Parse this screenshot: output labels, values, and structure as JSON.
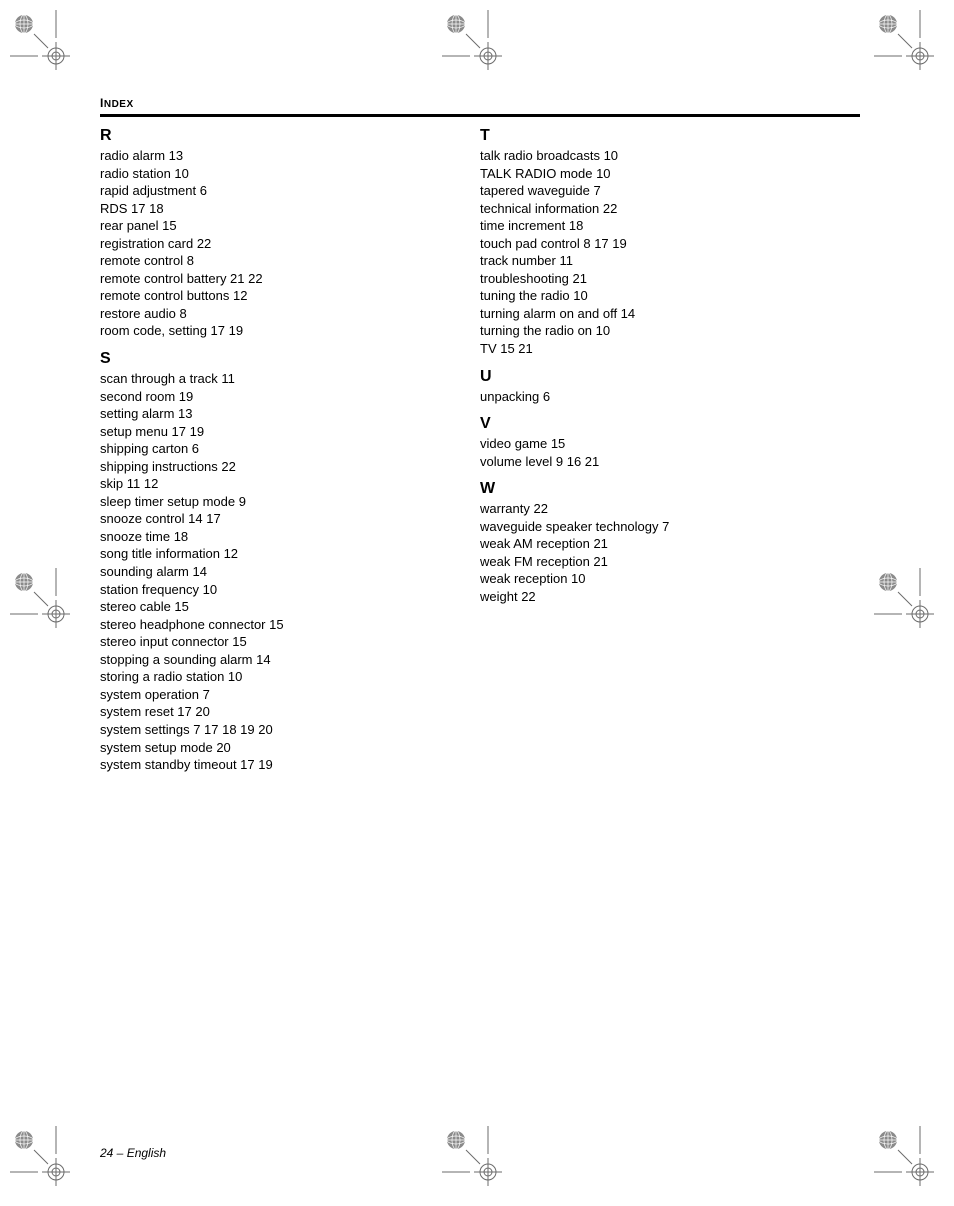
{
  "header": {
    "label_big": "I",
    "label_rest": "NDEX"
  },
  "footer": {
    "text": "24 – English"
  },
  "columns": [
    {
      "sections": [
        {
          "letter": "R",
          "entries": [
            "radio alarm 13",
            "radio station 10",
            "rapid adjustment 6",
            "RDS 17  18",
            "rear panel 15",
            "registration card 22",
            "remote control 8",
            "remote control battery 21  22",
            "remote control buttons 12",
            "restore audio 8",
            "room code, setting 17  19"
          ]
        },
        {
          "letter": "S",
          "entries": [
            "scan through a track 11",
            "second room 19",
            "setting alarm 13",
            "setup menu 17  19",
            "shipping carton 6",
            "shipping instructions 22",
            "skip 11  12",
            "sleep timer setup mode 9",
            "snooze control 14  17",
            "snooze time 18",
            "song title information 12",
            "sounding alarm 14",
            "station frequency 10",
            "stereo cable 15",
            "stereo headphone connector 15",
            "stereo input connector 15",
            "stopping a sounding alarm 14",
            "storing a radio station 10",
            "system operation 7",
            "system reset 17  20",
            "system settings 7  17  18  19  20",
            "system setup mode 20",
            "system standby timeout 17  19"
          ]
        }
      ]
    },
    {
      "sections": [
        {
          "letter": "T",
          "entries": [
            "talk radio broadcasts 10",
            "TALK RADIO mode 10",
            "tapered waveguide 7",
            "technical information 22",
            "time increment 18",
            "touch pad control 8  17  19",
            "track number 11",
            "troubleshooting 21",
            "tuning the radio 10",
            "turning alarm on and off 14",
            "turning the radio on 10",
            "TV 15  21"
          ]
        },
        {
          "letter": "U",
          "entries": [
            "unpacking 6"
          ]
        },
        {
          "letter": "V",
          "entries": [
            "video game 15",
            "volume level 9  16  21"
          ]
        },
        {
          "letter": "W",
          "entries": [
            "warranty 22",
            "waveguide speaker technology 7",
            "weak AM reception 21",
            "weak FM reception 21",
            "weak reception 10",
            "weight 22"
          ]
        }
      ]
    }
  ],
  "regmarks": {
    "stroke": "#6b6b6b",
    "fill_globe": "#8a8a8a"
  }
}
